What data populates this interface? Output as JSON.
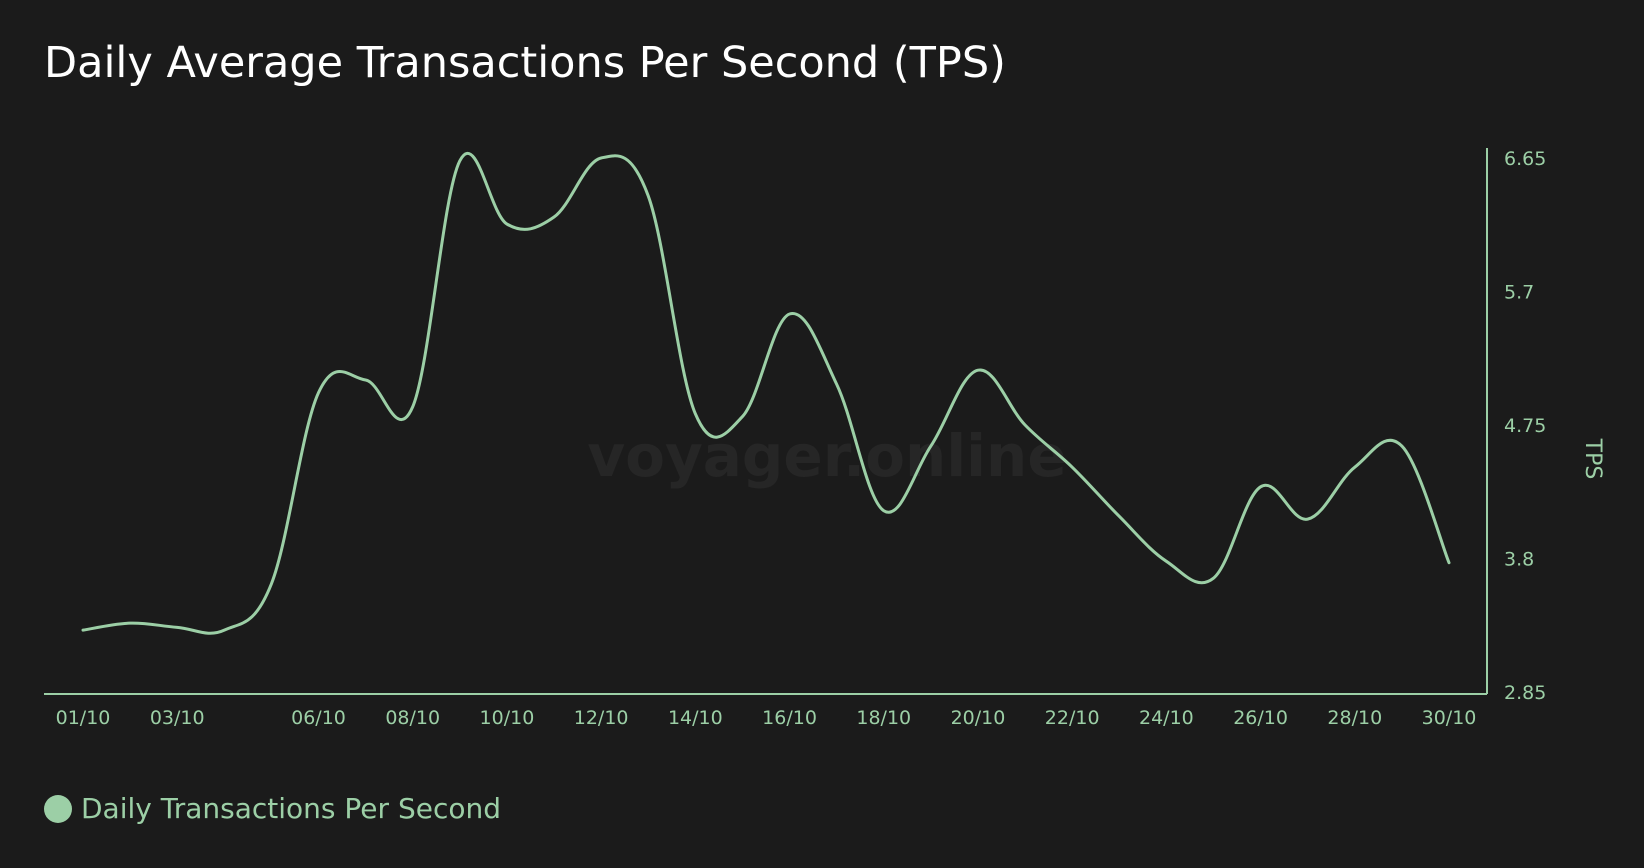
{
  "colors": {
    "background": "#1b1b1b",
    "title": "#ffffff",
    "accent": "#9ccfa6",
    "watermark": "#262626"
  },
  "watermark": "voyager.online",
  "chart_data": {
    "type": "line",
    "title": "Daily Average Transactions Per Second (TPS)",
    "xlabel": "",
    "ylabel": "TPS",
    "y_axis_position": "right",
    "ylim": [
      2.85,
      6.65
    ],
    "yticks": [
      2.85,
      3.8,
      4.75,
      5.7,
      6.65
    ],
    "x_ticks": [
      "01/10",
      "03/10",
      "06/10",
      "08/10",
      "10/10",
      "12/10",
      "14/10",
      "16/10",
      "18/10",
      "20/10",
      "22/10",
      "24/10",
      "26/10",
      "28/10",
      "30/10"
    ],
    "grid": false,
    "legend_position": "bottom-left",
    "x": [
      "01/10",
      "02/10",
      "03/10",
      "04/10",
      "05/10",
      "06/10",
      "07/10",
      "08/10",
      "09/10",
      "10/10",
      "11/10",
      "12/10",
      "13/10",
      "14/10",
      "15/10",
      "16/10",
      "17/10",
      "18/10",
      "19/10",
      "20/10",
      "21/10",
      "22/10",
      "23/10",
      "24/10",
      "25/10",
      "26/10",
      "27/10",
      "28/10",
      "29/10",
      "30/10"
    ],
    "series": [
      {
        "name": "Daily Transactions Per Second",
        "values": [
          3.29,
          3.34,
          3.31,
          3.29,
          3.62,
          4.98,
          5.07,
          4.88,
          6.63,
          6.18,
          6.23,
          6.65,
          6.38,
          4.83,
          4.81,
          5.54,
          5.04,
          4.14,
          4.6,
          5.14,
          4.75,
          4.45,
          4.1,
          3.78,
          3.66,
          4.31,
          4.08,
          4.45,
          4.6,
          3.77
        ]
      }
    ]
  }
}
